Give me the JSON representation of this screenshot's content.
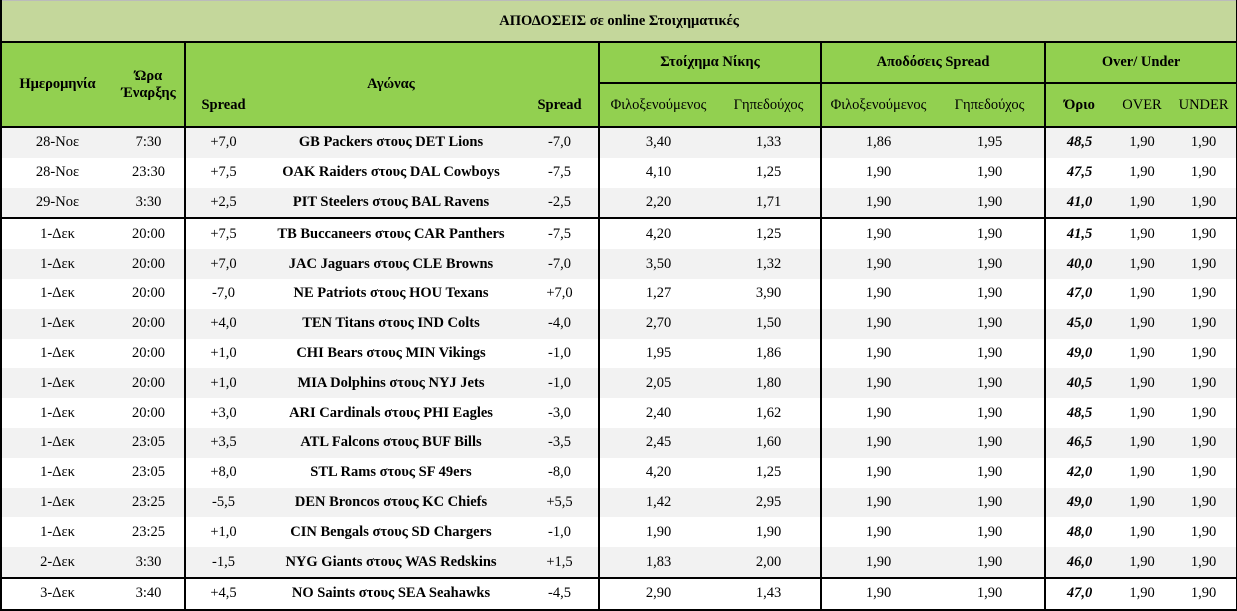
{
  "title": "ΑΠΟΔΟΣΕΙΣ σε online Στοιχηματικές",
  "headers": {
    "date": "Ημερομηνία",
    "time_line1": "Ώρα",
    "time_line2": "Έναρξης",
    "match": "Αγώνας",
    "spread_away": "Spread",
    "spread_home": "Spread",
    "group_win": "Στοίχημα Νίκης",
    "group_spread": "Αποδόσεις Spread",
    "group_ou": "Over/ Under",
    "win_away": "Φιλοξενούμενος",
    "win_home": "Γηπεδούχος",
    "sp_away": "Φιλοξενούμενος",
    "sp_home": "Γηπεδούχος",
    "limit": "Όριο",
    "over": "OVER",
    "under": "UNDER"
  },
  "rows": [
    {
      "date": "28-Νοε",
      "time": "7:30",
      "sa": "+7,0",
      "match": "GB Packers στους DET Lions",
      "sh": "-7,0",
      "wa": "3,40",
      "wh": "1,33",
      "pa": "1,86",
      "ph": "1,95",
      "limit": "48,5",
      "over": "1,90",
      "under": "1,90"
    },
    {
      "date": "28-Νοε",
      "time": "23:30",
      "sa": "+7,5",
      "match": "OAK Raiders στους DAL Cowboys",
      "sh": "-7,5",
      "wa": "4,10",
      "wh": "1,25",
      "pa": "1,90",
      "ph": "1,90",
      "limit": "47,5",
      "over": "1,90",
      "under": "1,90"
    },
    {
      "date": "29-Νοε",
      "time": "3:30",
      "sa": "+2,5",
      "match": "PIT Steelers στους BAL Ravens",
      "sh": "-2,5",
      "wa": "2,20",
      "wh": "1,71",
      "pa": "1,90",
      "ph": "1,90",
      "limit": "41,0",
      "over": "1,90",
      "under": "1,90"
    },
    {
      "date": "1-Δεκ",
      "time": "20:00",
      "sa": "+7,5",
      "match": "TB Buccaneers στους CAR Panthers",
      "sh": "-7,5",
      "wa": "4,20",
      "wh": "1,25",
      "pa": "1,90",
      "ph": "1,90",
      "limit": "41,5",
      "over": "1,90",
      "under": "1,90"
    },
    {
      "date": "1-Δεκ",
      "time": "20:00",
      "sa": "+7,0",
      "match": "JAC Jaguars στους CLE Browns",
      "sh": "-7,0",
      "wa": "3,50",
      "wh": "1,32",
      "pa": "1,90",
      "ph": "1,90",
      "limit": "40,0",
      "over": "1,90",
      "under": "1,90"
    },
    {
      "date": "1-Δεκ",
      "time": "20:00",
      "sa": "-7,0",
      "match": "NE Patriots στους HOU Texans",
      "sh": "+7,0",
      "wa": "1,27",
      "wh": "3,90",
      "pa": "1,90",
      "ph": "1,90",
      "limit": "47,0",
      "over": "1,90",
      "under": "1,90"
    },
    {
      "date": "1-Δεκ",
      "time": "20:00",
      "sa": "+4,0",
      "match": "TEN Titans στους IND Colts",
      "sh": "-4,0",
      "wa": "2,70",
      "wh": "1,50",
      "pa": "1,90",
      "ph": "1,90",
      "limit": "45,0",
      "over": "1,90",
      "under": "1,90"
    },
    {
      "date": "1-Δεκ",
      "time": "20:00",
      "sa": "+1,0",
      "match": "CHI Bears στους MIN Vikings",
      "sh": "-1,0",
      "wa": "1,95",
      "wh": "1,86",
      "pa": "1,90",
      "ph": "1,90",
      "limit": "49,0",
      "over": "1,90",
      "under": "1,90"
    },
    {
      "date": "1-Δεκ",
      "time": "20:00",
      "sa": "+1,0",
      "match": "MIA Dolphins στους NYJ Jets",
      "sh": "-1,0",
      "wa": "2,05",
      "wh": "1,80",
      "pa": "1,90",
      "ph": "1,90",
      "limit": "40,5",
      "over": "1,90",
      "under": "1,90"
    },
    {
      "date": "1-Δεκ",
      "time": "20:00",
      "sa": "+3,0",
      "match": "ARI Cardinals στους PHI Eagles",
      "sh": "-3,0",
      "wa": "2,40",
      "wh": "1,62",
      "pa": "1,90",
      "ph": "1,90",
      "limit": "48,5",
      "over": "1,90",
      "under": "1,90"
    },
    {
      "date": "1-Δεκ",
      "time": "23:05",
      "sa": "+3,5",
      "match": "ATL Falcons στους BUF Bills",
      "sh": "-3,5",
      "wa": "2,45",
      "wh": "1,60",
      "pa": "1,90",
      "ph": "1,90",
      "limit": "46,5",
      "over": "1,90",
      "under": "1,90"
    },
    {
      "date": "1-Δεκ",
      "time": "23:05",
      "sa": "+8,0",
      "match": "STL Rams στους SF 49ers",
      "sh": "-8,0",
      "wa": "4,20",
      "wh": "1,25",
      "pa": "1,90",
      "ph": "1,90",
      "limit": "42,0",
      "over": "1,90",
      "under": "1,90"
    },
    {
      "date": "1-Δεκ",
      "time": "23:25",
      "sa": "-5,5",
      "match": "DEN Broncos στους KC Chiefs",
      "sh": "+5,5",
      "wa": "1,42",
      "wh": "2,95",
      "pa": "1,90",
      "ph": "1,90",
      "limit": "49,0",
      "over": "1,90",
      "under": "1,90"
    },
    {
      "date": "1-Δεκ",
      "time": "23:25",
      "sa": "+1,0",
      "match": "CIN Bengals στους SD Chargers",
      "sh": "-1,0",
      "wa": "1,90",
      "wh": "1,90",
      "pa": "1,90",
      "ph": "1,90",
      "limit": "48,0",
      "over": "1,90",
      "under": "1,90"
    },
    {
      "date": "2-Δεκ",
      "time": "3:30",
      "sa": "-1,5",
      "match": "NYG Giants στους WAS Redskins",
      "sh": "+1,5",
      "wa": "1,83",
      "wh": "2,00",
      "pa": "1,90",
      "ph": "1,90",
      "limit": "46,0",
      "over": "1,90",
      "under": "1,90"
    },
    {
      "date": "3-Δεκ",
      "time": "3:40",
      "sa": "+4,5",
      "match": "NO Saints στους SEA Seahawks",
      "sh": "-4,5",
      "wa": "2,90",
      "wh": "1,43",
      "pa": "1,90",
      "ph": "1,90",
      "limit": "47,0",
      "over": "1,90",
      "under": "1,90"
    }
  ],
  "colors": {
    "title_bg": "#c4d79b",
    "header_bg": "#92d050",
    "stripe": "#f2f2f2"
  }
}
